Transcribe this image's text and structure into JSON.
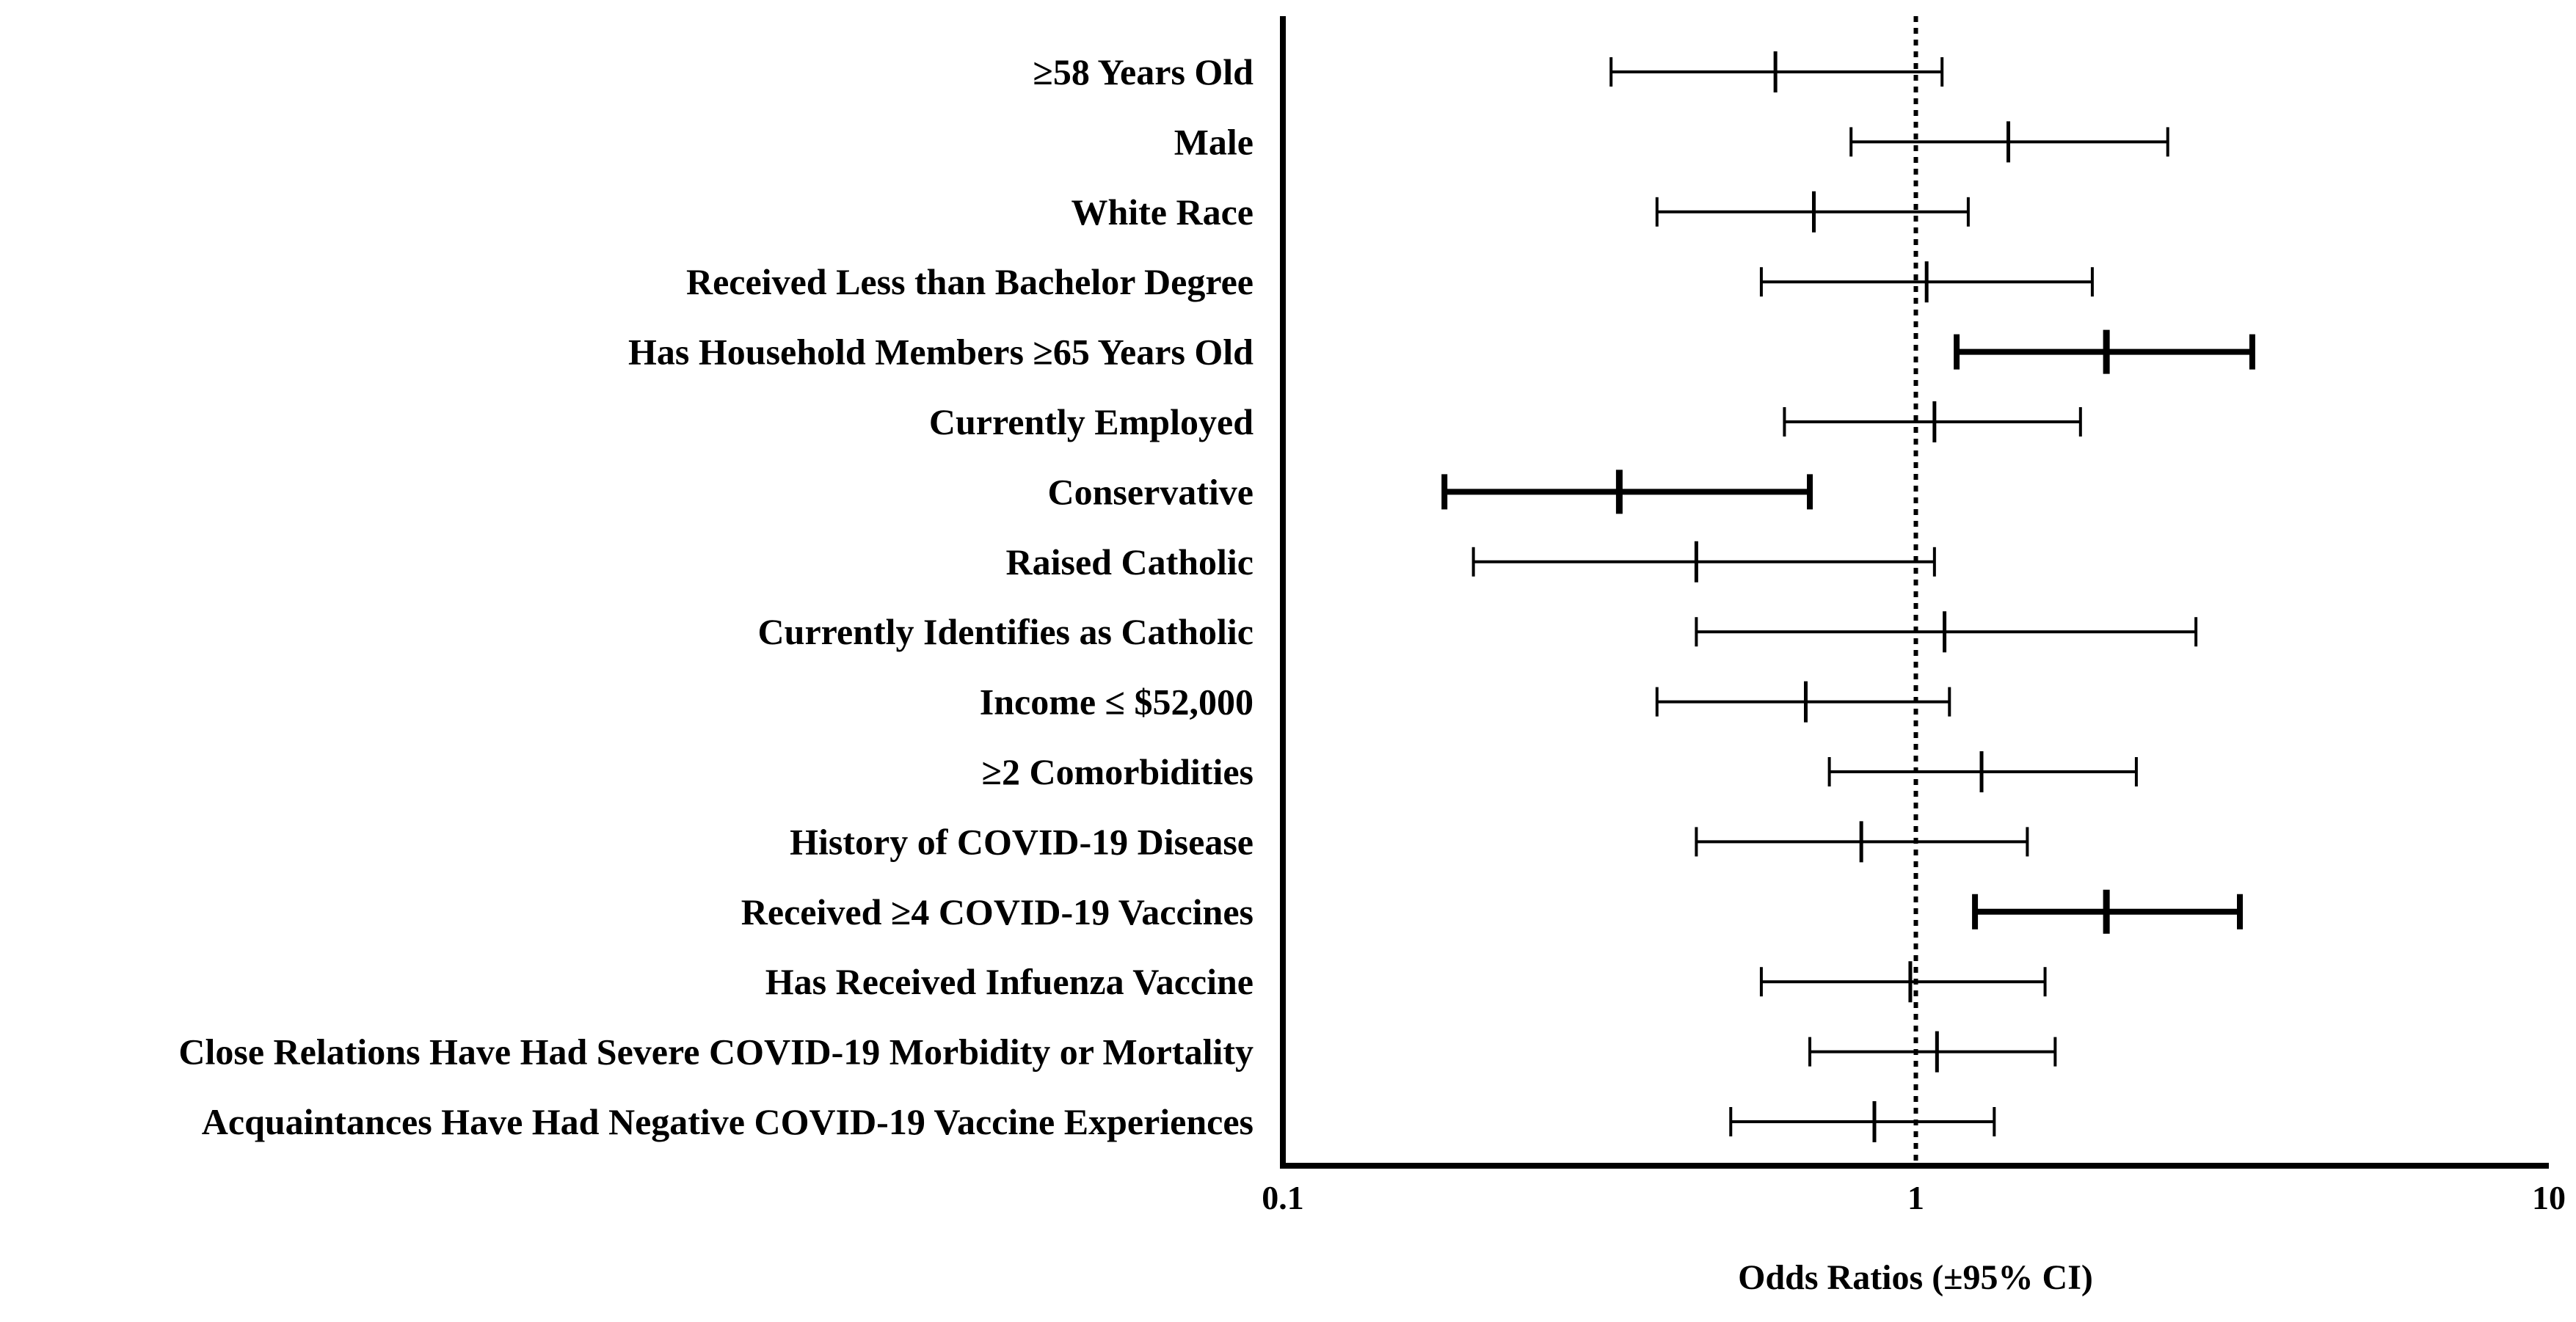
{
  "chart_data": {
    "type": "forest",
    "xlabel": "Odds Ratios (±95% CI)",
    "xscale": "log",
    "xlim": [
      0.1,
      10
    ],
    "xticks": [
      {
        "value": 0.1,
        "label": "0.1"
      },
      {
        "value": 1,
        "label": "1"
      },
      {
        "value": 10,
        "label": "10"
      }
    ],
    "reference_line": {
      "value": 1,
      "style": "dotted"
    },
    "rows": [
      {
        "label": "≥58 Years Old",
        "or": 0.6,
        "lower": 0.33,
        "upper": 1.1,
        "significant": false
      },
      {
        "label": "Male",
        "or": 1.4,
        "lower": 0.79,
        "upper": 2.5,
        "significant": false
      },
      {
        "label": "White Race",
        "or": 0.69,
        "lower": 0.39,
        "upper": 1.21,
        "significant": false
      },
      {
        "label": "Received Less than Bachelor Degree",
        "or": 1.04,
        "lower": 0.57,
        "upper": 1.9,
        "significant": false
      },
      {
        "label": "Has Household Members ≥65 Years Old",
        "or": 2.0,
        "lower": 1.16,
        "upper": 3.4,
        "significant": true
      },
      {
        "label": "Currently Employed",
        "or": 1.07,
        "lower": 0.62,
        "upper": 1.82,
        "significant": false
      },
      {
        "label": "Conservative",
        "or": 0.34,
        "lower": 0.18,
        "upper": 0.68,
        "significant": true
      },
      {
        "label": "Raised Catholic",
        "or": 0.45,
        "lower": 0.2,
        "upper": 1.07,
        "significant": false
      },
      {
        "label": "Currently Identifies as Catholic",
        "or": 1.11,
        "lower": 0.45,
        "upper": 2.77,
        "significant": false
      },
      {
        "label": "Income ≤ $52,000",
        "or": 0.67,
        "lower": 0.39,
        "upper": 1.13,
        "significant": false
      },
      {
        "label": "≥2 Comorbidities",
        "or": 1.27,
        "lower": 0.73,
        "upper": 2.23,
        "significant": false
      },
      {
        "label": "History of COVID-19 Disease",
        "or": 0.82,
        "lower": 0.45,
        "upper": 1.5,
        "significant": false
      },
      {
        "label": "Received ≥4 COVID-19 Vaccines",
        "or": 2.0,
        "lower": 1.24,
        "upper": 3.25,
        "significant": true
      },
      {
        "label": "Has Received Infuenza Vaccine",
        "or": 0.98,
        "lower": 0.57,
        "upper": 1.6,
        "significant": false
      },
      {
        "label": "Close Relations Have Had Severe COVID-19 Morbidity or Mortality",
        "or": 1.08,
        "lower": 0.68,
        "upper": 1.66,
        "significant": false
      },
      {
        "label": "Acquaintances Have Had Negative COVID-19 Vaccine Experiences",
        "or": 0.86,
        "lower": 0.51,
        "upper": 1.33,
        "significant": false
      }
    ]
  }
}
